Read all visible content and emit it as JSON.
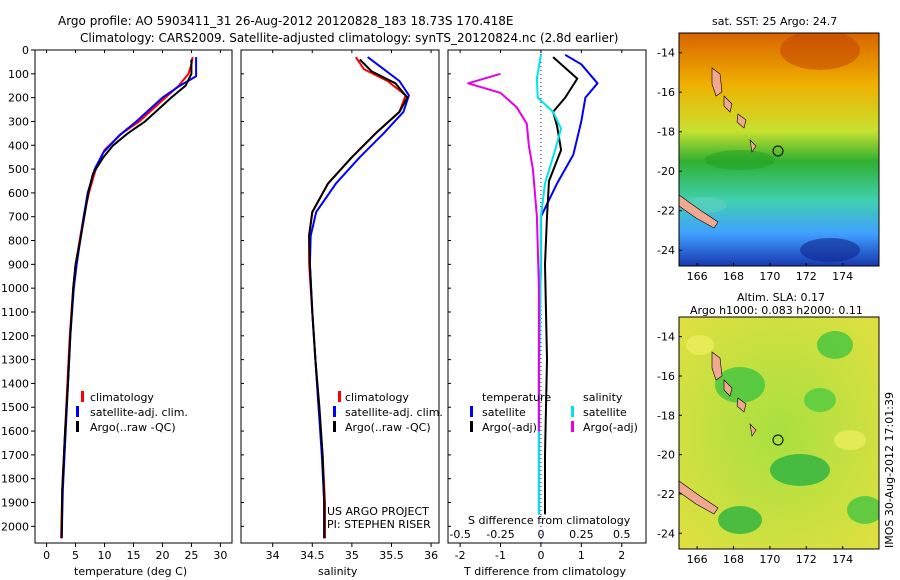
{
  "header": {
    "line1": "Argo profile: AO 5903411_31 26-Aug-2012 20120828_183 18.73S 170.418E",
    "line2": "Climatology: CARS2009. Satellite-adjusted climatology: synTS_20120824.nc (2.8d earlier)"
  },
  "depth_ticks": [
    "0",
    "100",
    "200",
    "300",
    "400",
    "500",
    "600",
    "700",
    "800",
    "900",
    "1000",
    "1100",
    "1200",
    "1300",
    "1400",
    "1500",
    "1600",
    "1700",
    "1800",
    "1900",
    "2000"
  ],
  "colors": {
    "climatology": "#ff0000",
    "satellite": "#0000ff",
    "argo": "#000000",
    "sal_satellite": "#00e5e5",
    "sal_argo": "#e500e5"
  },
  "chart_data": [
    {
      "type": "line",
      "id": "temperature",
      "xlabel": "temperature (deg C)",
      "xticks": [
        "0",
        "5",
        "10",
        "15",
        "20",
        "25",
        "30"
      ],
      "xlim": [
        -2,
        32
      ],
      "ylim": [
        2070,
        0
      ],
      "legend": [
        "climatology",
        "satellite-adj. clim.",
        "Argo(..raw -QC)"
      ],
      "series": [
        {
          "name": "climatology",
          "color": "#ff0000",
          "x": [
            25.2,
            25.0,
            24.5,
            22.8,
            20.5,
            16.0,
            13.0,
            10.0,
            8.5,
            7.3,
            6.4,
            5.7,
            5.0,
            4.6,
            4.0,
            3.6,
            3.2,
            2.7,
            2.5
          ],
          "y": [
            30,
            60,
            100,
            150,
            200,
            300,
            350,
            420,
            500,
            600,
            700,
            800,
            900,
            1000,
            1200,
            1400,
            1600,
            1850,
            2050
          ]
        },
        {
          "name": "satellite-adj. clim.",
          "color": "#0000ff",
          "x": [
            25.8,
            25.8,
            25.8,
            23.0,
            20.0,
            15.5,
            12.5,
            9.8,
            8.3,
            7.1,
            6.4,
            5.8,
            5.2,
            4.7,
            4.1,
            3.7,
            3.3,
            2.8,
            2.6
          ],
          "y": [
            30,
            60,
            110,
            150,
            200,
            300,
            360,
            430,
            500,
            600,
            700,
            800,
            900,
            1000,
            1200,
            1400,
            1600,
            1850,
            2050
          ]
        },
        {
          "name": "Argo(..raw -QC)",
          "color": "#000000",
          "x": [
            25.0,
            25.0,
            24.0,
            21.5,
            17.0,
            14.0,
            11.5,
            9.8,
            8.0,
            7.2,
            6.5,
            5.8,
            5.0,
            4.6,
            4.1,
            3.7,
            3.2,
            2.7,
            2.6
          ],
          "y": [
            40,
            100,
            150,
            200,
            300,
            350,
            400,
            450,
            520,
            600,
            700,
            800,
            900,
            1000,
            1200,
            1400,
            1600,
            1850,
            2050
          ]
        }
      ]
    },
    {
      "type": "line",
      "id": "salinity",
      "xlabel": "salinity",
      "xticks": [
        "34",
        "34.5",
        "35",
        "35.5",
        "36"
      ],
      "xlim": [
        33.6,
        36.1
      ],
      "ylim": [
        2070,
        0
      ],
      "legend": [
        "climatology",
        "satellite-adj. clim.",
        "Argo(..raw -QC)"
      ],
      "annotation": [
        "US ARGO PROJECT",
        "PI: STEPHEN RISER"
      ],
      "series": [
        {
          "name": "climatology",
          "color": "#ff0000",
          "x": [
            35.05,
            35.15,
            35.45,
            35.68,
            35.6,
            35.3,
            35.0,
            34.7,
            34.5,
            34.46,
            34.46,
            34.5,
            34.54,
            34.58,
            34.63,
            34.66,
            34.66
          ],
          "y": [
            30,
            80,
            130,
            190,
            260,
            350,
            450,
            560,
            680,
            780,
            900,
            1100,
            1300,
            1500,
            1700,
            1900,
            2050
          ]
        },
        {
          "name": "satellite-adj. clim.",
          "color": "#0000ff",
          "x": [
            35.2,
            35.4,
            35.6,
            35.72,
            35.65,
            35.4,
            35.1,
            34.8,
            34.55,
            34.48,
            34.47,
            34.5,
            34.54,
            34.58,
            34.62,
            34.65,
            34.65
          ],
          "y": [
            30,
            80,
            130,
            190,
            260,
            350,
            450,
            560,
            680,
            780,
            900,
            1100,
            1300,
            1500,
            1700,
            1900,
            2050
          ]
        },
        {
          "name": "Argo(..raw -QC)",
          "color": "#000000",
          "x": [
            35.1,
            35.25,
            35.55,
            35.7,
            35.6,
            35.3,
            35.0,
            34.7,
            34.5,
            34.46,
            34.47,
            34.5,
            34.54,
            34.59,
            34.63,
            34.65,
            34.65
          ],
          "y": [
            40,
            90,
            140,
            200,
            260,
            350,
            450,
            560,
            680,
            780,
            900,
            1100,
            1300,
            1500,
            1700,
            1900,
            2050
          ]
        }
      ]
    },
    {
      "type": "line",
      "id": "difference",
      "xlabel_top": "S difference from climatology",
      "xticks_top": [
        "-0.5",
        "-0.25",
        "0",
        "0.25",
        "0.5"
      ],
      "xlabel": "T difference from climatology",
      "xticks": [
        "-2",
        "-1",
        "0",
        "1",
        "2"
      ],
      "xlim": [
        -2.3,
        2.6
      ],
      "ylim": [
        2070,
        0
      ],
      "legend_titles": [
        "temperature",
        "salinity"
      ],
      "legend": [
        "satellite",
        "Argo(-adj)",
        "satellite",
        "Argo(-adj)"
      ],
      "series": [
        {
          "name": "satellite",
          "group": "temperature",
          "color": "#0000ff",
          "x": [
            0.6,
            1.0,
            1.4,
            1.1,
            1.0,
            0.8,
            0.4,
            0.0,
            0.0,
            -0.05,
            -0.05,
            -0.05
          ],
          "y": [
            20,
            60,
            140,
            200,
            300,
            440,
            560,
            700,
            900,
            1300,
            1700,
            1950
          ]
        },
        {
          "name": "Argo(-adj)",
          "group": "temperature",
          "color": "#000000",
          "x": [
            0.3,
            0.9,
            0.6,
            0.3,
            0.4,
            0.5,
            0.2,
            0.15,
            0.1,
            0.15,
            0.1,
            0.1
          ],
          "y": [
            30,
            120,
            200,
            260,
            320,
            420,
            550,
            700,
            900,
            1300,
            1700,
            1950
          ]
        },
        {
          "name": "satellite",
          "group": "salinity",
          "color": "#00e5e5",
          "x": [
            0.0,
            -0.1,
            -0.08,
            0.3,
            0.5,
            0.35,
            0.1,
            0.0,
            0.0,
            -0.05,
            -0.05
          ],
          "y": [
            20,
            120,
            200,
            260,
            330,
            420,
            560,
            700,
            900,
            1400,
            1950
          ]
        },
        {
          "name": "Argo(-adj)",
          "group": "salinity",
          "color": "#e500e5",
          "x": [
            -1.0,
            -1.8,
            -1.0,
            -0.6,
            -0.35,
            -0.3,
            -0.2,
            -0.1,
            -0.05,
            -0.05
          ],
          "y": [
            100,
            140,
            180,
            240,
            310,
            400,
            500,
            700,
            1000,
            1600
          ]
        }
      ]
    }
  ],
  "maps": {
    "x_ticks": [
      "166",
      "168",
      "170",
      "172",
      "174"
    ],
    "y_ticks": [
      "-14",
      "-16",
      "-18",
      "-20",
      "-22",
      "-24"
    ],
    "sst_title": "sat. SST: 25  Argo: 24.7",
    "sla_title1": "Altim. SLA: 0.17",
    "sla_title2": "Argo h1000: 0.083 h2000: 0.11"
  },
  "footer": {
    "timestamp": "IMOS 30-Aug-2012 17:01:39"
  }
}
